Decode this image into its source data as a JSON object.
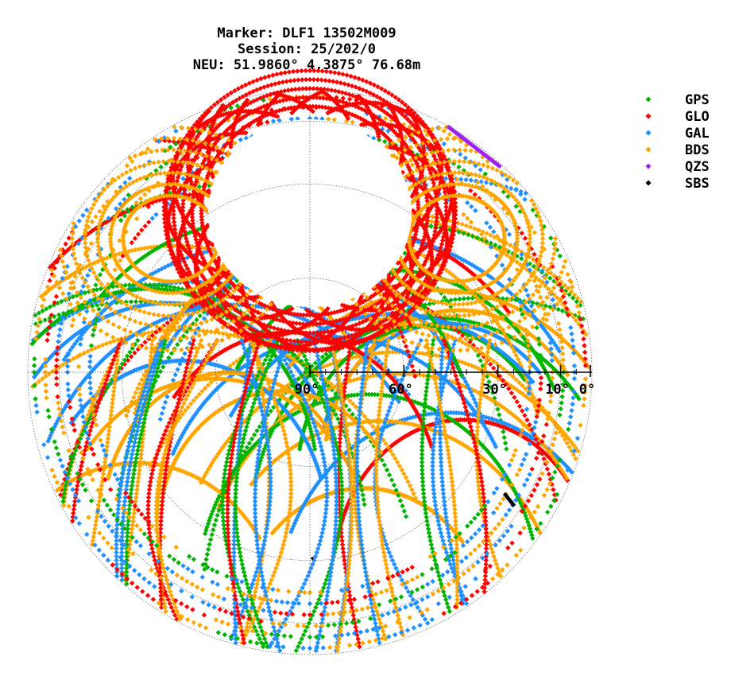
{
  "header": {
    "marker": "Marker: DLF1 13502M009",
    "session": "Session: 25/202/0",
    "neu": "NEU: 51.9860° 4.3875° 76.68m"
  },
  "chart_data": {
    "type": "scatter",
    "subtype": "polar-skyplot",
    "title": "Marker: DLF1 13502M009\nSession: 25/202/0\nNEU: 51.9860° 4.3875° 76.68m",
    "radial_axis": {
      "quantity": "elevation",
      "range": [
        0,
        90
      ],
      "ticks": [
        90,
        60,
        30,
        10,
        0
      ],
      "tick_labels": [
        "90°",
        "60°",
        "30°",
        "10°",
        "0°"
      ]
    },
    "grid": true,
    "legend": "right",
    "series": [
      {
        "name": "GPS",
        "color": "#00b400"
      },
      {
        "name": "GLO",
        "color": "#ff0000"
      },
      {
        "name": "GAL",
        "color": "#1e90ff"
      },
      {
        "name": "BDS",
        "color": "#ffa500"
      },
      {
        "name": "QZS",
        "color": "#a020f0"
      },
      {
        "name": "SBS",
        "color": "#000000"
      }
    ]
  }
}
